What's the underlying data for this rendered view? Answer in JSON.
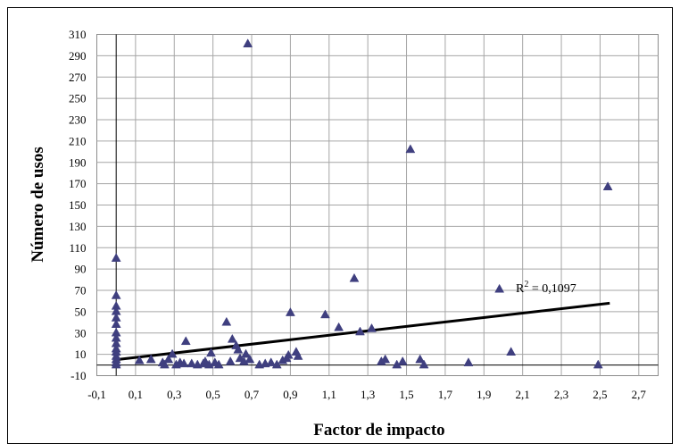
{
  "chart_data": {
    "type": "scatter",
    "xlabel": "Factor de impacto",
    "ylabel": "Número de usos",
    "xlim": [
      -0.1,
      2.8
    ],
    "ylim": [
      -10,
      310
    ],
    "x_ticks": [
      "-0,1",
      "0,1",
      "0,3",
      "0,5",
      "0,7",
      "0,9",
      "1,1",
      "1,3",
      "1,5",
      "1,7",
      "1,9",
      "2,1",
      "2,3",
      "2,5",
      "2,7"
    ],
    "x_tick_values": [
      -0.1,
      0.1,
      0.3,
      0.5,
      0.7,
      0.9,
      1.1,
      1.3,
      1.5,
      1.7,
      1.9,
      2.1,
      2.3,
      2.5,
      2.7
    ],
    "y_ticks": [
      "310",
      "290",
      "270",
      "250",
      "230",
      "210",
      "190",
      "170",
      "150",
      "130",
      "110",
      "90",
      "70",
      "50",
      "30",
      "10",
      "-10"
    ],
    "y_tick_values": [
      310,
      290,
      270,
      250,
      230,
      210,
      190,
      170,
      150,
      130,
      110,
      90,
      70,
      50,
      30,
      10,
      -10
    ],
    "grid": true,
    "marker": "triangle",
    "marker_color": "#3f3f7f",
    "trendline": {
      "x": [
        0,
        2.55
      ],
      "y": [
        5,
        58
      ],
      "color": "#000000"
    },
    "annotation": {
      "base": "R",
      "sup": "2",
      "text": " = 0,1097"
    },
    "points": [
      [
        0,
        100
      ],
      [
        0,
        65
      ],
      [
        0,
        55
      ],
      [
        0,
        50
      ],
      [
        0,
        44
      ],
      [
        0,
        38
      ],
      [
        0,
        30
      ],
      [
        0,
        25
      ],
      [
        0,
        20
      ],
      [
        0,
        15
      ],
      [
        0,
        12
      ],
      [
        0,
        8
      ],
      [
        0,
        5
      ],
      [
        0,
        2
      ],
      [
        0,
        0
      ],
      [
        0.12,
        4
      ],
      [
        0.18,
        5
      ],
      [
        0.24,
        2
      ],
      [
        0.25,
        0
      ],
      [
        0.27,
        5
      ],
      [
        0.29,
        10
      ],
      [
        0.31,
        0
      ],
      [
        0.33,
        2
      ],
      [
        0.35,
        1
      ],
      [
        0.36,
        22
      ],
      [
        0.39,
        1
      ],
      [
        0.42,
        0
      ],
      [
        0.45,
        1
      ],
      [
        0.46,
        3
      ],
      [
        0.48,
        0
      ],
      [
        0.49,
        11
      ],
      [
        0.51,
        2
      ],
      [
        0.53,
        0
      ],
      [
        0.57,
        40
      ],
      [
        0.59,
        3
      ],
      [
        0.6,
        24
      ],
      [
        0.62,
        18
      ],
      [
        0.63,
        14
      ],
      [
        0.64,
        6
      ],
      [
        0.66,
        3
      ],
      [
        0.67,
        10
      ],
      [
        0.68,
        301
      ],
      [
        0.69,
        5
      ],
      [
        0.74,
        0
      ],
      [
        0.77,
        1
      ],
      [
        0.8,
        2
      ],
      [
        0.83,
        0
      ],
      [
        0.86,
        4
      ],
      [
        0.88,
        6
      ],
      [
        0.89,
        9
      ],
      [
        0.9,
        49
      ],
      [
        0.93,
        12
      ],
      [
        0.94,
        8
      ],
      [
        1.08,
        47
      ],
      [
        1.15,
        35
      ],
      [
        1.23,
        81
      ],
      [
        1.26,
        31
      ],
      [
        1.32,
        34
      ],
      [
        1.37,
        3
      ],
      [
        1.39,
        5
      ],
      [
        1.45,
        0
      ],
      [
        1.48,
        3
      ],
      [
        1.52,
        202
      ],
      [
        1.57,
        5
      ],
      [
        1.59,
        0
      ],
      [
        1.82,
        2
      ],
      [
        1.98,
        71
      ],
      [
        2.04,
        12
      ],
      [
        2.49,
        0
      ],
      [
        2.54,
        167
      ]
    ]
  }
}
